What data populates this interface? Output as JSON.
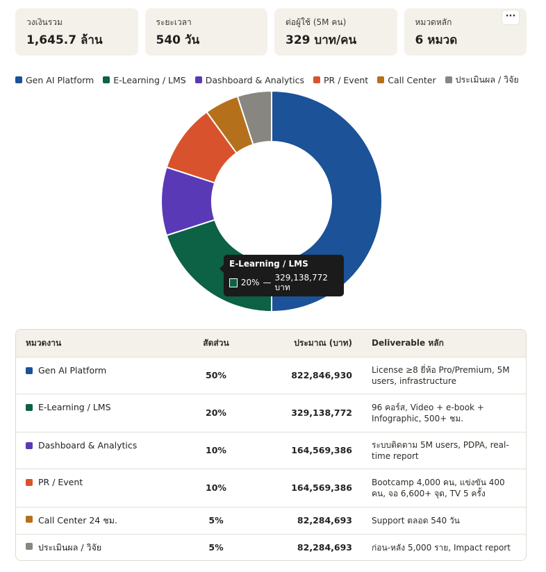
{
  "stats": [
    {
      "label": "วงเงินรวม",
      "value": "1,645.7 ล้าน"
    },
    {
      "label": "ระยะเวลา",
      "value": "540 วัน"
    },
    {
      "label": "ต่อผู้ใช้ (5M คน)",
      "value": "329 บาท/คน"
    },
    {
      "label": "หมวดหลัก",
      "value": "6 หมวด"
    }
  ],
  "more_label": "···",
  "chart_data": {
    "type": "pie",
    "donut": true,
    "title": "",
    "series": [
      {
        "name": "Gen AI Platform",
        "value": 50,
        "color": "#1b5298"
      },
      {
        "name": "E-Learning / LMS",
        "value": 20,
        "color": "#0d6144"
      },
      {
        "name": "Dashboard & Analytics",
        "value": 10,
        "color": "#5a39b7"
      },
      {
        "name": "PR / Event",
        "value": 10,
        "color": "#d8532d"
      },
      {
        "name": "Call Center",
        "value": 5,
        "color": "#b4701b"
      },
      {
        "name": "ประเมินผล / วิจัย",
        "value": 5,
        "color": "#878680"
      }
    ],
    "legend_position": "top-left"
  },
  "tooltip": {
    "title": "E-Learning / LMS",
    "percent": "20%",
    "dash": "—",
    "amount": "329,138,772 บาท",
    "color": "#0d6144"
  },
  "table": {
    "headers": {
      "category": "หมวดงาน",
      "share": "สัดส่วน",
      "amount": "ประมาณ (บาท)",
      "deliverable": "Deliverable หลัก"
    },
    "rows": [
      {
        "category": "Gen AI Platform",
        "color": "#1b5298",
        "share": "50%",
        "amount": "822,846,930",
        "deliverable": "License ≥8 ยี่ห้อ Pro/Premium, 5M users, infrastructure"
      },
      {
        "category": "E-Learning / LMS",
        "color": "#0d6144",
        "share": "20%",
        "amount": "329,138,772",
        "deliverable": "96 คอร์ส, Video + e-book + Infographic, 500+ ชม."
      },
      {
        "category": "Dashboard & Analytics",
        "color": "#5a39b7",
        "share": "10%",
        "amount": "164,569,386",
        "deliverable": "ระบบติดตาม 5M users, PDPA, real-time report"
      },
      {
        "category": "PR / Event",
        "color": "#d8532d",
        "share": "10%",
        "amount": "164,569,386",
        "deliverable": "Bootcamp 4,000 คน, แข่งขัน 400 คน, จอ 6,600+ จุด, TV 5 ครั้ง"
      },
      {
        "category": "Call Center 24 ชม.",
        "color": "#b4701b",
        "share": "5%",
        "amount": "82,284,693",
        "deliverable": "Support ตลอด 540 วัน"
      },
      {
        "category": "ประเมินผล / วิจัย",
        "color": "#878680",
        "share": "5%",
        "amount": "82,284,693",
        "deliverable": "ก่อน-หลัง 5,000 ราย, Impact report"
      }
    ]
  }
}
